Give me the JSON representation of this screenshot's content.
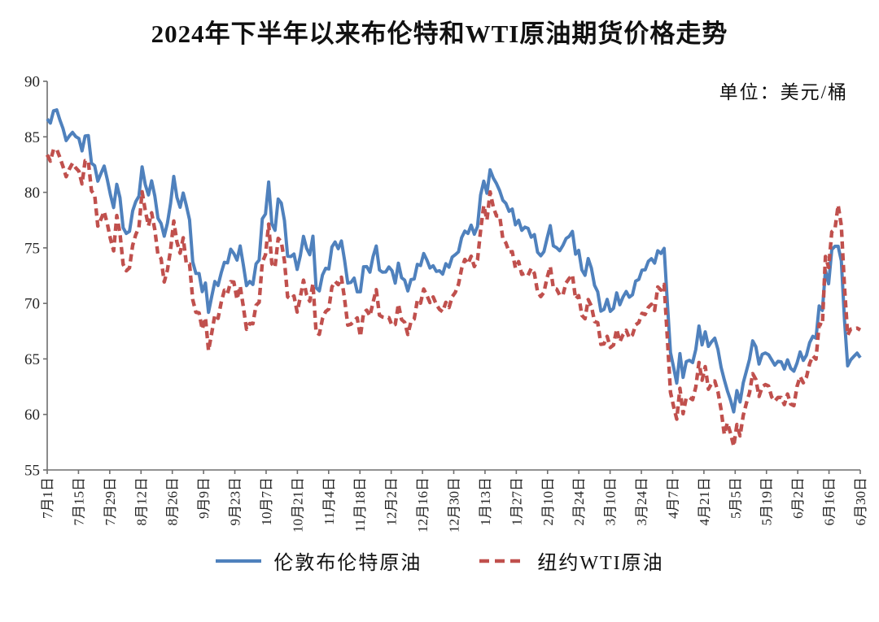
{
  "title": "2024年下半年以来布伦特和WTI原油期货价格走势",
  "unit_label": "单位：美元/桶",
  "colors": {
    "brent": "#4F81BD",
    "wti": "#C0504D",
    "axis": "#6e6e6e",
    "tick_text": "#262626"
  },
  "legend": [
    {
      "name": "伦敦布伦特原油",
      "style": "solid",
      "color": "#4F81BD"
    },
    {
      "name": "纽约WTI原油",
      "style": "dashed",
      "color": "#C0504D"
    }
  ],
  "chart_data": {
    "type": "line",
    "title": "2024年下半年以来布伦特和WTI原油期货价格走势",
    "ylabel": "美元/桶",
    "ylim": [
      55,
      90
    ],
    "yticks": [
      55,
      60,
      65,
      70,
      75,
      80,
      85,
      90
    ],
    "grid": false,
    "legend_position": "bottom",
    "xtick_labels": [
      "7月1日",
      "7月15日",
      "7月29日",
      "8月12日",
      "8月26日",
      "9月9日",
      "9月23日",
      "10月7日",
      "10月21日",
      "11月4日",
      "11月18日",
      "12月2日",
      "12月16日",
      "12月30日",
      "1月13日",
      "1月27日",
      "2月10日",
      "2月24日",
      "3月10日",
      "3月24日",
      "4月7日",
      "4月21日",
      "5月5日",
      "5月19日",
      "6月2日",
      "6月16日",
      "6月30日"
    ],
    "series": [
      {
        "name": "伦敦布伦特原油",
        "color": "#4F81BD",
        "dash": null,
        "values": [
          86.6,
          86.24,
          87.34,
          87.43,
          86.54,
          85.75,
          84.66,
          85.08,
          85.4,
          85.03,
          84.85,
          83.73,
          85.08,
          85.11,
          82.63,
          82.4,
          81.01,
          81.71,
          82.37,
          81.13,
          79.78,
          78.63,
          80.72,
          79.52,
          76.81,
          76.3,
          76.48,
          78.33,
          79.16,
          79.66,
          82.3,
          80.69,
          79.76,
          81.04,
          79.68,
          77.66,
          77.2,
          76.05,
          77.22,
          79.02,
          81.43,
          79.55,
          78.65,
          79.94,
          78.8,
          77.52,
          73.75,
          72.7,
          72.69,
          71.06,
          71.84,
          69.19,
          70.61,
          71.97,
          71.61,
          72.75,
          73.7,
          73.65,
          74.88,
          74.49,
          73.9,
          75.17,
          73.46,
          71.6,
          71.98,
          71.7,
          73.56,
          73.9,
          77.62,
          78.05,
          80.93,
          77.18,
          76.58,
          79.4,
          79.04,
          77.46,
          74.25,
          74.22,
          74.45,
          73.06,
          74.29,
          76.04,
          74.96,
          74.38,
          76.05,
          71.42,
          71.12,
          72.55,
          73.16,
          73.1,
          75.08,
          75.53,
          74.92,
          75.63,
          73.87,
          71.83,
          71.89,
          72.28,
          71.04,
          71.04,
          73.3,
          73.31,
          72.81,
          74.23,
          75.17,
          73.01,
          72.81,
          72.83,
          73.28,
          72.94,
          71.83,
          73.62,
          72.31,
          72.09,
          71.12,
          72.14,
          72.19,
          73.52,
          73.41,
          74.49,
          73.91,
          73.19,
          73.39,
          72.88,
          72.94,
          72.63,
          73.58,
          73.26,
          74.17,
          74.39,
          74.64,
          75.93,
          76.51,
          76.3,
          77.05,
          76.23,
          76.92,
          79.76,
          81.01,
          79.92,
          82.03,
          81.29,
          80.79,
          80.15,
          79.29,
          79.0,
          78.29,
          78.5,
          77.08,
          77.49,
          76.58,
          76.87,
          76.76,
          75.96,
          76.2,
          74.61,
          74.29,
          74.66,
          75.87,
          77.0,
          75.18,
          75.02,
          74.74,
          75.22,
          75.84,
          76.04,
          76.48,
          74.43,
          74.78,
          73.02,
          72.53,
          74.04,
          73.18,
          71.62,
          71.04,
          69.3,
          69.46,
          70.36,
          69.28,
          69.56,
          70.95,
          69.88,
          70.58,
          71.07,
          70.56,
          70.78,
          72.0,
          72.16,
          73.0,
          73.02,
          73.79,
          74.03,
          73.63,
          74.74,
          74.49,
          74.95,
          70.14,
          65.58,
          64.21,
          62.82,
          65.48,
          63.33,
          64.76,
          64.88,
          64.67,
          65.85,
          67.96,
          66.26,
          67.44,
          66.12,
          66.55,
          66.87,
          65.86,
          64.25,
          63.12,
          62.13,
          61.29,
          60.23,
          62.15,
          61.12,
          62.84,
          63.91,
          64.96,
          66.63,
          66.09,
          64.53,
          65.41,
          65.54,
          65.38,
          64.91,
          64.44,
          64.78,
          64.74,
          64.09,
          64.92,
          64.15,
          63.9,
          64.63,
          65.63,
          64.86,
          65.34,
          66.47,
          67.04,
          66.87,
          69.77,
          69.36,
          72.98,
          71.77,
          74.84,
          75.14,
          75.14,
          73.84,
          68.51,
          64.37,
          64.92,
          65.24,
          65.52,
          65.11
        ]
      },
      {
        "name": "纽约WTI原油",
        "color": "#C0504D",
        "dash": [
          9,
          5.5
        ],
        "values": [
          83.38,
          82.81,
          83.88,
          83.88,
          83.16,
          82.33,
          81.41,
          82.1,
          82.62,
          82.21,
          81.91,
          80.76,
          82.85,
          82.82,
          80.13,
          79.78,
          76.96,
          77.59,
          78.28,
          77.16,
          75.81,
          74.73,
          77.91,
          76.31,
          73.52,
          72.94,
          73.2,
          75.23,
          76.19,
          76.84,
          80.06,
          78.35,
          76.98,
          78.16,
          76.65,
          74.37,
          74.04,
          71.93,
          73.01,
          74.83,
          77.42,
          75.53,
          74.52,
          75.91,
          73.55,
          73.55,
          70.34,
          69.2,
          69.15,
          67.67,
          68.71,
          65.75,
          67.31,
          68.97,
          68.65,
          70.09,
          71.19,
          70.91,
          71.95,
          71.92,
          70.37,
          71.56,
          69.69,
          67.67,
          68.18,
          68.17,
          69.83,
          70.1,
          73.71,
          74.38,
          77.14,
          73.57,
          73.24,
          75.85,
          75.56,
          73.83,
          70.58,
          70.39,
          70.67,
          69.22,
          70.56,
          72.09,
          70.77,
          70.19,
          71.78,
          67.38,
          67.21,
          68.61,
          69.26,
          69.49,
          71.47,
          71.99,
          71.69,
          72.36,
          70.38,
          68.04,
          68.12,
          68.43,
          68.7,
          67.02,
          69.16,
          69.39,
          68.87,
          70.1,
          71.24,
          68.94,
          68.77,
          68.72,
          68.72,
          68.0,
          68.1,
          69.94,
          68.54,
          68.3,
          67.2,
          68.37,
          68.59,
          70.29,
          70.02,
          71.29,
          70.71,
          70.08,
          70.58,
          69.91,
          69.46,
          69.24,
          70.1,
          69.62,
          70.6,
          70.99,
          71.72,
          73.13,
          73.96,
          73.56,
          74.25,
          73.32,
          73.92,
          76.57,
          78.82,
          77.5,
          80.04,
          78.68,
          77.88,
          77.88,
          75.83,
          75.44,
          74.62,
          74.66,
          73.17,
          73.77,
          72.62,
          72.73,
          72.53,
          73.16,
          72.7,
          71.03,
          70.61,
          71.0,
          72.32,
          73.32,
          71.37,
          71.29,
          70.74,
          70.74,
          71.85,
          72.25,
          72.57,
          70.4,
          70.7,
          68.93,
          68.62,
          70.35,
          69.76,
          68.37,
          68.26,
          66.31,
          66.36,
          67.04,
          66.03,
          66.25,
          67.68,
          66.55,
          67.18,
          67.58,
          66.9,
          67.16,
          68.07,
          68.28,
          69.11,
          69.0,
          69.65,
          69.92,
          69.36,
          71.48,
          71.2,
          71.71,
          66.95,
          61.99,
          60.7,
          59.58,
          62.35,
          60.07,
          61.5,
          61.53,
          61.33,
          62.47,
          64.68,
          63.08,
          64.31,
          62.27,
          62.79,
          63.02,
          62.05,
          60.42,
          58.21,
          59.24,
          58.29,
          57.13,
          59.09,
          58.07,
          59.91,
          61.02,
          61.95,
          63.67,
          63.15,
          61.62,
          62.49,
          62.69,
          62.56,
          61.57,
          61.2,
          61.53,
          61.53,
          60.89,
          61.84,
          60.94,
          60.79,
          62.52,
          63.41,
          62.85,
          63.37,
          64.58,
          65.29,
          64.98,
          68.15,
          68.04,
          74.23,
          73.23,
          76.45,
          76.7,
          78.85,
          77.01,
          71.48,
          67.14,
          67.68,
          67.73,
          67.77,
          67.61
        ]
      }
    ]
  }
}
